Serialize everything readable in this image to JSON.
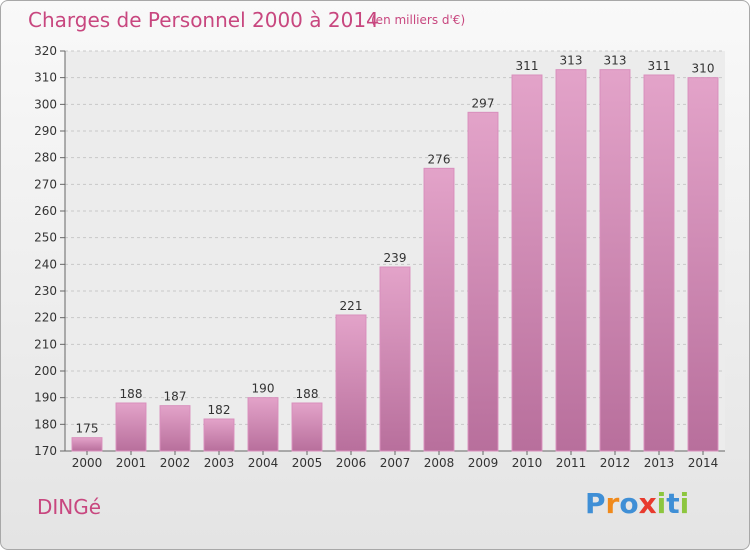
{
  "header": {
    "title": "Charges de Personnel 2000 à 2014",
    "unit": "(en milliers d'€)"
  },
  "footer": {
    "place": "DINGé"
  },
  "logo": {
    "text": "Proxiti",
    "letters": [
      {
        "ch": "P",
        "color": "#3f8fd6"
      },
      {
        "ch": "r",
        "color": "#f08a1c"
      },
      {
        "ch": "o",
        "color": "#3f8fd6"
      },
      {
        "ch": "x",
        "color": "#e83a2d"
      },
      {
        "ch": "i",
        "color": "#8dc63f"
      },
      {
        "ch": "t",
        "color": "#3f8fd6"
      },
      {
        "ch": "i",
        "color": "#8dc63f"
      }
    ]
  },
  "colors": {
    "accent": "#c8477f",
    "bar_top": "#e3a3c9",
    "bar_bottom": "#b86f9c",
    "grid": "#c8c8c8"
  },
  "chart_data": {
    "type": "bar",
    "title": "Charges de Personnel 2000 à 2014",
    "categories": [
      "2000",
      "2001",
      "2002",
      "2003",
      "2004",
      "2005",
      "2006",
      "2007",
      "2008",
      "2009",
      "2010",
      "2011",
      "2012",
      "2013",
      "2014"
    ],
    "values": [
      175,
      188,
      187,
      182,
      190,
      188,
      221,
      239,
      276,
      297,
      311,
      313,
      313,
      311,
      310
    ],
    "ylim": [
      170,
      320
    ],
    "yticks": [
      170,
      180,
      190,
      200,
      210,
      220,
      230,
      240,
      250,
      260,
      270,
      280,
      290,
      300,
      310,
      320
    ],
    "grid": true,
    "xlabel": "",
    "ylabel": ""
  }
}
